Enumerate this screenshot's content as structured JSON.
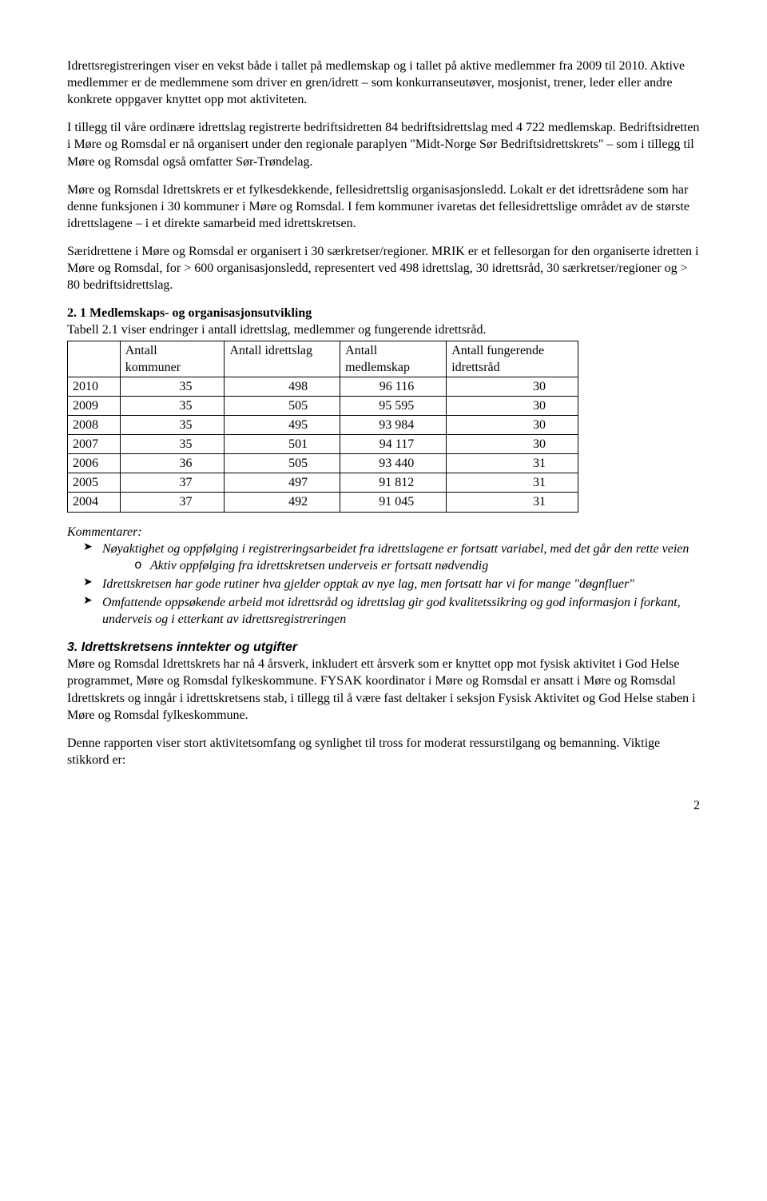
{
  "intro": {
    "p1": "Idrettsregistreringen viser en vekst både i tallet på medlemskap og i tallet på aktive medlemmer fra 2009 til 2010. Aktive medlemmer er de medlemmene som driver en gren/idrett – som konkurranseutøver, mosjonist, trener, leder eller andre konkrete oppgaver knyttet opp mot aktiviteten.",
    "p2": "I tillegg til våre ordinære idrettslag registrerte bedriftsidretten 84 bedriftsidrettslag med 4 722 medlemskap.  Bedriftsidretten i Møre og Romsdal er nå organisert under den regionale paraplyen \"Midt-Norge Sør Bedriftsidrettskrets\" – som i tillegg til Møre og Romsdal også omfatter Sør-Trøndelag.",
    "p3": "Møre og Romsdal Idrettskrets er et fylkesdekkende, fellesidrettslig organisasjonsledd.  Lokalt er det idrettsrådene som har denne funksjonen i 30 kommuner i Møre og Romsdal.  I fem kommuner ivaretas det fellesidrettslige området av de største idrettslagene – i et direkte samarbeid med idrettskretsen.",
    "p4": "Særidrettene i Møre og Romsdal er organisert i 30 særkretser/regioner.  MRIK er et fellesorgan for den organiserte idretten i Møre og Romsdal, for > 600 organisasjonsledd, representert ved 498 idrettslag, 30 idrettsråd, 30 særkretser/regioner og > 80 bedriftsidrettslag."
  },
  "section2": {
    "heading": "2. 1 Medlemskaps- og organisasjonsutvikling",
    "table_caption": "Tabell 2.1 viser endringer i antall idrettslag, medlemmer og fungerende idrettsråd.",
    "headers": {
      "col0": "",
      "col1_l1": "Antall",
      "col1_l2": "kommuner",
      "col2": "Antall idrettslag",
      "col3_l1": "Antall",
      "col3_l2": "medlemskap",
      "col4_l1": "Antall fungerende",
      "col4_l2": "idrettsråd"
    },
    "rows": [
      {
        "year": "2010",
        "kommuner": "35",
        "lag": "498",
        "medlemskap": "96 116",
        "rad": "30"
      },
      {
        "year": "2009",
        "kommuner": "35",
        "lag": "505",
        "medlemskap": "95 595",
        "rad": "30"
      },
      {
        "year": "2008",
        "kommuner": "35",
        "lag": "495",
        "medlemskap": "93 984",
        "rad": "30"
      },
      {
        "year": "2007",
        "kommuner": "35",
        "lag": "501",
        "medlemskap": "94 117",
        "rad": "30"
      },
      {
        "year": "2006",
        "kommuner": "36",
        "lag": "505",
        "medlemskap": "93 440",
        "rad": "31"
      },
      {
        "year": "2005",
        "kommuner": "37",
        "lag": "497",
        "medlemskap": "91 812",
        "rad": "31"
      },
      {
        "year": "2004",
        "kommuner": "37",
        "lag": "492",
        "medlemskap": "91 045",
        "rad": "31"
      }
    ],
    "comments_label": "Kommentarer:",
    "comments": [
      {
        "text": "Nøyaktighet og oppfølging i registreringsarbeidet fra idrettslagene er fortsatt variabel, med det går den rette veien",
        "sub": "Aktiv oppfølging fra idrettskretsen underveis er fortsatt nødvendig"
      },
      {
        "text": "Idrettskretsen har gode rutiner hva gjelder opptak av nye lag, men fortsatt har vi for mange \"døgnfluer\""
      },
      {
        "text": "Omfattende oppsøkende arbeid mot idrettsråd og idrettslag gir god kvalitetssikring og god informasjon i forkant, underveis og i etterkant av idrettsregistreringen"
      }
    ]
  },
  "section3": {
    "heading": "3.  Idrettskretsens inntekter og utgifter",
    "p1": "Møre og Romsdal Idrettskrets har nå 4 årsverk, inkludert ett årsverk som er knyttet opp mot fysisk aktivitet i God Helse programmet, Møre og Romsdal fylkeskommune.  FYSAK koordinator i Møre og Romsdal er ansatt i Møre og Romsdal Idrettskrets og inngår i idrettskretsens stab, i tillegg til å være fast deltaker i seksjon Fysisk Aktivitet og God Helse staben i Møre og Romsdal fylkeskommune.",
    "p2": "Denne rapporten viser stort aktivitetsomfang og synlighet til tross for moderat ressurstilgang og bemanning.  Viktige stikkord er:"
  },
  "page_number": "2"
}
